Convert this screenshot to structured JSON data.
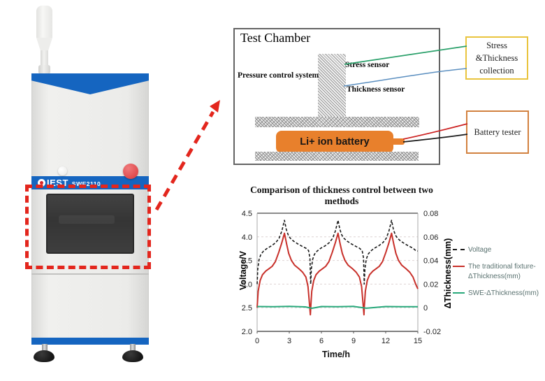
{
  "machine": {
    "brand": "IEST",
    "model": "SWE2110",
    "colors": {
      "accent_blue": "#1565c0",
      "emergency_button_red": "#e04b4d",
      "highlight_red": "#e3261d"
    }
  },
  "diagram": {
    "title": "Test Chamber",
    "labels": {
      "pressure": "Pressure control system",
      "stress_sensor": "Stress sensor",
      "thickness_sensor": "Thickness sensor",
      "battery": "Li+ ion battery"
    },
    "battery_color": "#e8802c",
    "wire_colors": {
      "stress": "#2aa06a",
      "thickness": "#5b8fc0",
      "battery_pos": "#cc2222",
      "battery_neg": "#1a1a1a"
    },
    "boxes": {
      "collection": {
        "lines": [
          "Stress",
          "&Thickness",
          "collection"
        ],
        "border": "#e9c43e"
      },
      "tester": {
        "label": "Battery tester",
        "border": "#d2813f"
      }
    }
  },
  "chart_data": {
    "type": "line",
    "title": "Comparison of thickness control between two methods",
    "xlabel": "Time/h",
    "ylabel_left": "Voltage/V",
    "ylabel_right": "ΔThickness(mm)",
    "xlim": [
      0,
      15
    ],
    "x_ticks": [
      0,
      3,
      6,
      9,
      12,
      15
    ],
    "ylim_left": [
      2.0,
      4.5
    ],
    "yticks_left": [
      2.0,
      2.5,
      3.0,
      3.5,
      4.0,
      4.5
    ],
    "ylim_right": [
      -0.02,
      0.08
    ],
    "yticks_right": [
      -0.02,
      0,
      0.02,
      0.04,
      0.06,
      0.08
    ],
    "grid": "horizontal-dashed",
    "legend_position": "right",
    "series": [
      {
        "name": "Voltage",
        "legend_lines": [
          "Voltage"
        ],
        "axis": "left",
        "color": "#1a1a1a",
        "dash": true,
        "points": [
          [
            0,
            3.0
          ],
          [
            0.06,
            3.32
          ],
          [
            0.18,
            3.52
          ],
          [
            0.35,
            3.63
          ],
          [
            0.6,
            3.7
          ],
          [
            0.95,
            3.76
          ],
          [
            1.35,
            3.81
          ],
          [
            1.75,
            3.88
          ],
          [
            2.05,
            3.97
          ],
          [
            2.3,
            4.12
          ],
          [
            2.55,
            4.35
          ],
          [
            2.72,
            4.16
          ],
          [
            2.9,
            4.04
          ],
          [
            3.1,
            3.97
          ],
          [
            3.4,
            3.91
          ],
          [
            3.8,
            3.85
          ],
          [
            4.2,
            3.8
          ],
          [
            4.55,
            3.76
          ],
          [
            4.8,
            3.71
          ],
          [
            4.93,
            3.55
          ],
          [
            4.99,
            3.05
          ],
          [
            5.0,
            3.0
          ],
          [
            5.06,
            3.32
          ],
          [
            5.18,
            3.52
          ],
          [
            5.35,
            3.63
          ],
          [
            5.6,
            3.7
          ],
          [
            5.95,
            3.76
          ],
          [
            6.35,
            3.81
          ],
          [
            6.75,
            3.88
          ],
          [
            7.05,
            3.97
          ],
          [
            7.3,
            4.12
          ],
          [
            7.55,
            4.35
          ],
          [
            7.72,
            4.16
          ],
          [
            7.9,
            4.04
          ],
          [
            8.1,
            3.97
          ],
          [
            8.4,
            3.91
          ],
          [
            8.8,
            3.85
          ],
          [
            9.2,
            3.8
          ],
          [
            9.55,
            3.76
          ],
          [
            9.8,
            3.71
          ],
          [
            9.93,
            3.55
          ],
          [
            9.99,
            3.05
          ],
          [
            10.0,
            3.0
          ],
          [
            10.06,
            3.32
          ],
          [
            10.18,
            3.52
          ],
          [
            10.35,
            3.63
          ],
          [
            10.6,
            3.7
          ],
          [
            10.95,
            3.76
          ],
          [
            11.35,
            3.81
          ],
          [
            11.75,
            3.88
          ],
          [
            12.05,
            3.97
          ],
          [
            12.3,
            4.12
          ],
          [
            12.55,
            4.35
          ],
          [
            12.72,
            4.16
          ],
          [
            12.9,
            4.04
          ],
          [
            13.1,
            3.97
          ],
          [
            13.4,
            3.91
          ],
          [
            13.8,
            3.85
          ],
          [
            14.2,
            3.8
          ],
          [
            14.55,
            3.76
          ],
          [
            14.8,
            3.71
          ],
          [
            15,
            3.7
          ]
        ]
      },
      {
        "name": "The traditional fixture-ΔThickness(mm)",
        "legend_lines": [
          "The traditional fixture-",
          "ΔThickness(mm)"
        ],
        "axis": "right",
        "color": "#c8302a",
        "dash": false,
        "points": [
          [
            0,
            0.0
          ],
          [
            0.1,
            0.014
          ],
          [
            0.28,
            0.023
          ],
          [
            0.5,
            0.028
          ],
          [
            0.8,
            0.031
          ],
          [
            1.1,
            0.033
          ],
          [
            1.4,
            0.035
          ],
          [
            1.7,
            0.039
          ],
          [
            2.02,
            0.047
          ],
          [
            2.3,
            0.055
          ],
          [
            2.55,
            0.063
          ],
          [
            2.75,
            0.054
          ],
          [
            2.95,
            0.046
          ],
          [
            3.2,
            0.04
          ],
          [
            3.5,
            0.036
          ],
          [
            3.9,
            0.033
          ],
          [
            4.25,
            0.03
          ],
          [
            4.55,
            0.026
          ],
          [
            4.75,
            0.018
          ],
          [
            4.9,
            0.002
          ],
          [
            4.97,
            -0.006
          ],
          [
            5.0,
            0.0
          ],
          [
            5.1,
            0.014
          ],
          [
            5.28,
            0.023
          ],
          [
            5.5,
            0.028
          ],
          [
            5.8,
            0.031
          ],
          [
            6.1,
            0.033
          ],
          [
            6.4,
            0.035
          ],
          [
            6.7,
            0.039
          ],
          [
            7.02,
            0.047
          ],
          [
            7.3,
            0.055
          ],
          [
            7.55,
            0.063
          ],
          [
            7.75,
            0.054
          ],
          [
            7.95,
            0.046
          ],
          [
            8.2,
            0.04
          ],
          [
            8.5,
            0.036
          ],
          [
            8.9,
            0.033
          ],
          [
            9.25,
            0.03
          ],
          [
            9.55,
            0.026
          ],
          [
            9.75,
            0.018
          ],
          [
            9.9,
            0.002
          ],
          [
            9.97,
            -0.006
          ],
          [
            10.0,
            0.0
          ],
          [
            10.1,
            0.014
          ],
          [
            10.28,
            0.023
          ],
          [
            10.5,
            0.028
          ],
          [
            10.8,
            0.031
          ],
          [
            11.1,
            0.033
          ],
          [
            11.4,
            0.035
          ],
          [
            11.7,
            0.039
          ],
          [
            12.02,
            0.047
          ],
          [
            12.3,
            0.055
          ],
          [
            12.55,
            0.063
          ],
          [
            12.75,
            0.054
          ],
          [
            12.95,
            0.046
          ],
          [
            13.2,
            0.04
          ],
          [
            13.5,
            0.036
          ],
          [
            13.9,
            0.033
          ],
          [
            14.25,
            0.03
          ],
          [
            14.55,
            0.026
          ],
          [
            14.8,
            0.02
          ],
          [
            15,
            0.016
          ]
        ]
      },
      {
        "name": "SWE-ΔThickness(mm)",
        "legend_lines": [
          "SWE-ΔThickness(mm)"
        ],
        "axis": "right",
        "color": "#27a87a",
        "dash": false,
        "points": [
          [
            0,
            0.001
          ],
          [
            1.5,
            0.0008
          ],
          [
            3,
            0.0012
          ],
          [
            4.5,
            0.0007
          ],
          [
            5.1,
            -0.0005
          ],
          [
            6,
            0.001
          ],
          [
            7.5,
            0.0009
          ],
          [
            9,
            0.0011
          ],
          [
            10.2,
            -0.0004
          ],
          [
            12,
            0.001
          ],
          [
            13.5,
            0.0008
          ],
          [
            15,
            0.0009
          ]
        ]
      }
    ]
  }
}
